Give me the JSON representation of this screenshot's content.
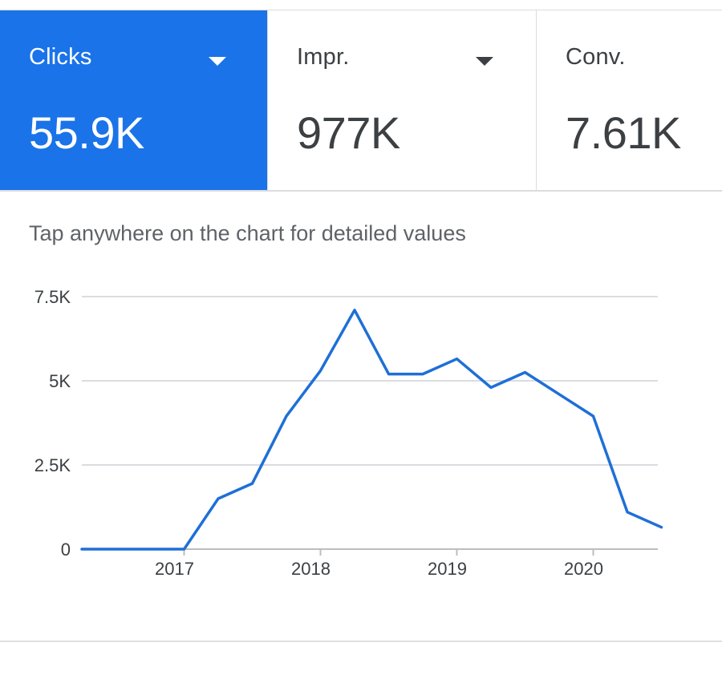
{
  "metrics": [
    {
      "label": "Clicks",
      "value": "55.9K",
      "has_dropdown": true,
      "active": true
    },
    {
      "label": "Impr.",
      "value": "977K",
      "has_dropdown": true,
      "active": false
    },
    {
      "label": "Conv.",
      "value": "7.61K",
      "has_dropdown": false,
      "active": false
    }
  ],
  "chart_hint": "Tap anywhere on the chart for detailed values",
  "colors": {
    "accent": "#1a73e8",
    "line": "#1f6fd6",
    "gridline": "#dadce0"
  },
  "icons": {
    "dropdown": "caret-down-icon"
  },
  "chart_data": {
    "type": "line",
    "title": "",
    "xlabel": "",
    "ylabel": "",
    "y_tick_labels": [
      "0",
      "2.5K",
      "5K",
      "7.5K"
    ],
    "y_ticks": [
      0,
      2500,
      5000,
      7500
    ],
    "ylim": [
      0,
      7500
    ],
    "x_tick_labels": [
      "2017",
      "2018",
      "2019",
      "2020"
    ],
    "x_ticks": [
      "2017-01",
      "2018-01",
      "2019-01",
      "2020-01"
    ],
    "grid": true,
    "x": [
      "2016-04",
      "2016-07",
      "2016-10",
      "2017-01",
      "2017-04",
      "2017-07",
      "2017-10",
      "2018-01",
      "2018-04",
      "2018-07",
      "2018-10",
      "2019-01",
      "2019-04",
      "2019-07",
      "2019-10",
      "2020-01",
      "2020-04",
      "2020-07"
    ],
    "series": [
      {
        "values": [
          0,
          0,
          0,
          0,
          1500,
          1950,
          3950,
          5300,
          7100,
          5200,
          5200,
          5650,
          4800,
          5250,
          4600,
          3950,
          1100,
          650
        ]
      }
    ]
  }
}
